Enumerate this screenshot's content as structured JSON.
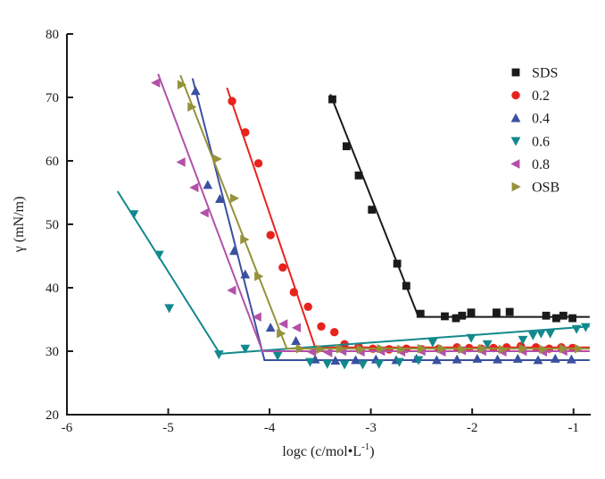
{
  "figure": {
    "background": "#ffffff",
    "axis_color": "#1a1a1a"
  },
  "labels": {
    "y_axis": "γ (mN/m)",
    "x_prefix": "logc (c/mol•L",
    "x_sup": "-1",
    "x_suffix": ")"
  },
  "chart_data": {
    "type": "scatter",
    "title": "",
    "xlabel": "logc (c/mol•L⁻¹)",
    "ylabel": "γ (mN/m)",
    "xlim": [
      -6,
      -0.83
    ],
    "ylim": [
      20,
      80
    ],
    "x_ticks": [
      -6,
      -5,
      -4,
      -3,
      -2,
      -1
    ],
    "x_tick_labels": [
      "-6",
      "-5",
      "-4",
      "-3",
      "-2",
      "-1"
    ],
    "y_ticks": [
      20,
      30,
      40,
      50,
      60,
      70,
      80
    ],
    "y_tick_labels": [
      "20",
      "30",
      "40",
      "50",
      "60",
      "70",
      "80"
    ],
    "grid": false,
    "legend_position": "upper right",
    "series": [
      {
        "name": "SDS",
        "color": "#1a1a1a",
        "marker": "square",
        "points": [
          [
            -3.38,
            69.7
          ],
          [
            -3.24,
            62.3
          ],
          [
            -3.12,
            57.7
          ],
          [
            -2.99,
            52.3
          ],
          [
            -2.74,
            43.8
          ],
          [
            -2.65,
            40.3
          ],
          [
            -2.51,
            35.9
          ],
          [
            -2.27,
            35.5
          ],
          [
            -2.16,
            35.2
          ],
          [
            -2.1,
            35.6
          ],
          [
            -2.01,
            36.1
          ],
          [
            -1.76,
            36.1
          ],
          [
            -1.63,
            36.2
          ],
          [
            -1.27,
            35.6
          ],
          [
            -1.17,
            35.2
          ],
          [
            -1.1,
            35.6
          ],
          [
            -1.01,
            35.2
          ]
        ],
        "fit": [
          [
            -3.4,
            70.5
          ],
          [
            -2.53,
            35.4
          ],
          [
            -0.84,
            35.4
          ]
        ]
      },
      {
        "name": "0.2",
        "color": "#e8231d",
        "marker": "circle",
        "points": [
          [
            -4.37,
            69.4
          ],
          [
            -4.24,
            64.5
          ],
          [
            -4.11,
            59.6
          ],
          [
            -3.99,
            48.3
          ],
          [
            -3.87,
            43.2
          ],
          [
            -3.76,
            39.3
          ],
          [
            -3.62,
            37.0
          ],
          [
            -3.49,
            33.9
          ],
          [
            -3.36,
            33.0
          ],
          [
            -3.26,
            31.1
          ],
          [
            -3.12,
            30.7
          ],
          [
            -2.98,
            30.4
          ],
          [
            -2.82,
            30.3
          ],
          [
            -2.65,
            30.4
          ],
          [
            -2.5,
            30.3
          ],
          [
            -2.33,
            30.4
          ],
          [
            -2.15,
            30.6
          ],
          [
            -2.03,
            30.5
          ],
          [
            -1.91,
            30.4
          ],
          [
            -1.79,
            30.5
          ],
          [
            -1.66,
            30.6
          ],
          [
            -1.52,
            30.8
          ],
          [
            -1.37,
            30.6
          ],
          [
            -1.24,
            30.4
          ],
          [
            -1.12,
            30.6
          ],
          [
            -1.01,
            30.5
          ]
        ],
        "fit": [
          [
            -4.42,
            71.5
          ],
          [
            -3.55,
            30.6
          ],
          [
            -0.84,
            30.6
          ]
        ]
      },
      {
        "name": "0.4",
        "color": "#3a50a0",
        "marker": "triangle-up",
        "points": [
          [
            -4.73,
            71.0
          ],
          [
            -4.61,
            56.2
          ],
          [
            -4.49,
            54.0
          ],
          [
            -4.35,
            45.8
          ],
          [
            -4.24,
            42.1
          ],
          [
            -3.99,
            33.7
          ],
          [
            -3.74,
            31.6
          ],
          [
            -3.55,
            28.7
          ],
          [
            -3.35,
            28.5
          ],
          [
            -3.15,
            28.6
          ],
          [
            -2.95,
            28.7
          ],
          [
            -2.75,
            28.6
          ],
          [
            -2.55,
            28.8
          ],
          [
            -2.35,
            28.6
          ],
          [
            -2.15,
            28.7
          ],
          [
            -1.95,
            28.8
          ],
          [
            -1.75,
            28.7
          ],
          [
            -1.55,
            28.8
          ],
          [
            -1.35,
            28.6
          ],
          [
            -1.18,
            28.8
          ],
          [
            -1.02,
            28.7
          ]
        ],
        "fit": [
          [
            -4.76,
            73.0
          ],
          [
            -4.05,
            28.6
          ],
          [
            -0.84,
            28.6
          ]
        ]
      },
      {
        "name": "0.6",
        "color": "#12898c",
        "marker": "triangle-down",
        "points": [
          [
            -5.34,
            51.6
          ],
          [
            -5.09,
            45.2
          ],
          [
            -4.99,
            36.8
          ],
          [
            -4.5,
            29.5
          ],
          [
            -4.24,
            30.4
          ],
          [
            -3.92,
            29.3
          ],
          [
            -3.6,
            28.3
          ],
          [
            -3.43,
            28.0
          ],
          [
            -3.26,
            27.9
          ],
          [
            -3.08,
            27.9
          ],
          [
            -2.92,
            28.0
          ],
          [
            -2.72,
            28.3
          ],
          [
            -2.53,
            28.6
          ],
          [
            -2.39,
            31.4
          ],
          [
            -2.01,
            32.1
          ],
          [
            -1.85,
            31.1
          ],
          [
            -1.5,
            31.8
          ],
          [
            -1.4,
            32.5
          ],
          [
            -1.32,
            32.8
          ],
          [
            -1.23,
            32.8
          ],
          [
            -0.97,
            33.5
          ],
          [
            -0.88,
            33.8
          ]
        ],
        "fit": [
          [
            -5.5,
            55.2
          ],
          [
            -4.49,
            29.6
          ],
          [
            -0.84,
            33.9
          ]
        ]
      },
      {
        "name": "0.8",
        "color": "#b351a9",
        "marker": "triangle-left",
        "points": [
          [
            -5.12,
            72.3
          ],
          [
            -4.87,
            59.8
          ],
          [
            -4.74,
            55.8
          ],
          [
            -4.64,
            51.8
          ],
          [
            -4.37,
            39.6
          ],
          [
            -4.12,
            35.4
          ],
          [
            -3.86,
            34.3
          ],
          [
            -3.73,
            33.7
          ],
          [
            -3.58,
            29.9
          ],
          [
            -3.42,
            29.8
          ],
          [
            -3.28,
            30.0
          ],
          [
            -3.1,
            29.9
          ],
          [
            -2.9,
            30.0
          ],
          [
            -2.7,
            29.9
          ],
          [
            -2.5,
            30.0
          ],
          [
            -2.3,
            29.9
          ],
          [
            -2.1,
            30.1
          ],
          [
            -1.9,
            30.0
          ],
          [
            -1.7,
            29.9
          ],
          [
            -1.5,
            30.0
          ],
          [
            -1.3,
            29.9
          ],
          [
            -1.1,
            30.0
          ]
        ],
        "fit": [
          [
            -5.1,
            73.7
          ],
          [
            -4.07,
            30.0
          ],
          [
            -0.84,
            30.0
          ]
        ]
      },
      {
        "name": "OSB",
        "color": "#95923a",
        "marker": "triangle-right",
        "points": [
          [
            -4.87,
            72.0
          ],
          [
            -4.77,
            68.5
          ],
          [
            -4.52,
            60.3
          ],
          [
            -4.35,
            54.1
          ],
          [
            -4.25,
            47.6
          ],
          [
            -4.11,
            41.8
          ],
          [
            -3.89,
            32.8
          ],
          [
            -3.7,
            30.4
          ],
          [
            -3.5,
            30.3
          ],
          [
            -3.3,
            30.4
          ],
          [
            -3.1,
            30.3
          ],
          [
            -2.9,
            30.4
          ],
          [
            -2.7,
            30.3
          ],
          [
            -2.5,
            30.4
          ],
          [
            -2.3,
            30.4
          ],
          [
            -2.1,
            30.3
          ],
          [
            -1.9,
            30.4
          ],
          [
            -1.7,
            30.3
          ],
          [
            -1.5,
            30.4
          ],
          [
            -1.3,
            30.3
          ],
          [
            -1.1,
            30.4
          ],
          [
            -0.95,
            30.4
          ]
        ],
        "fit": [
          [
            -4.88,
            73.5
          ],
          [
            -3.83,
            30.4
          ],
          [
            -0.84,
            30.4
          ]
        ]
      }
    ]
  }
}
